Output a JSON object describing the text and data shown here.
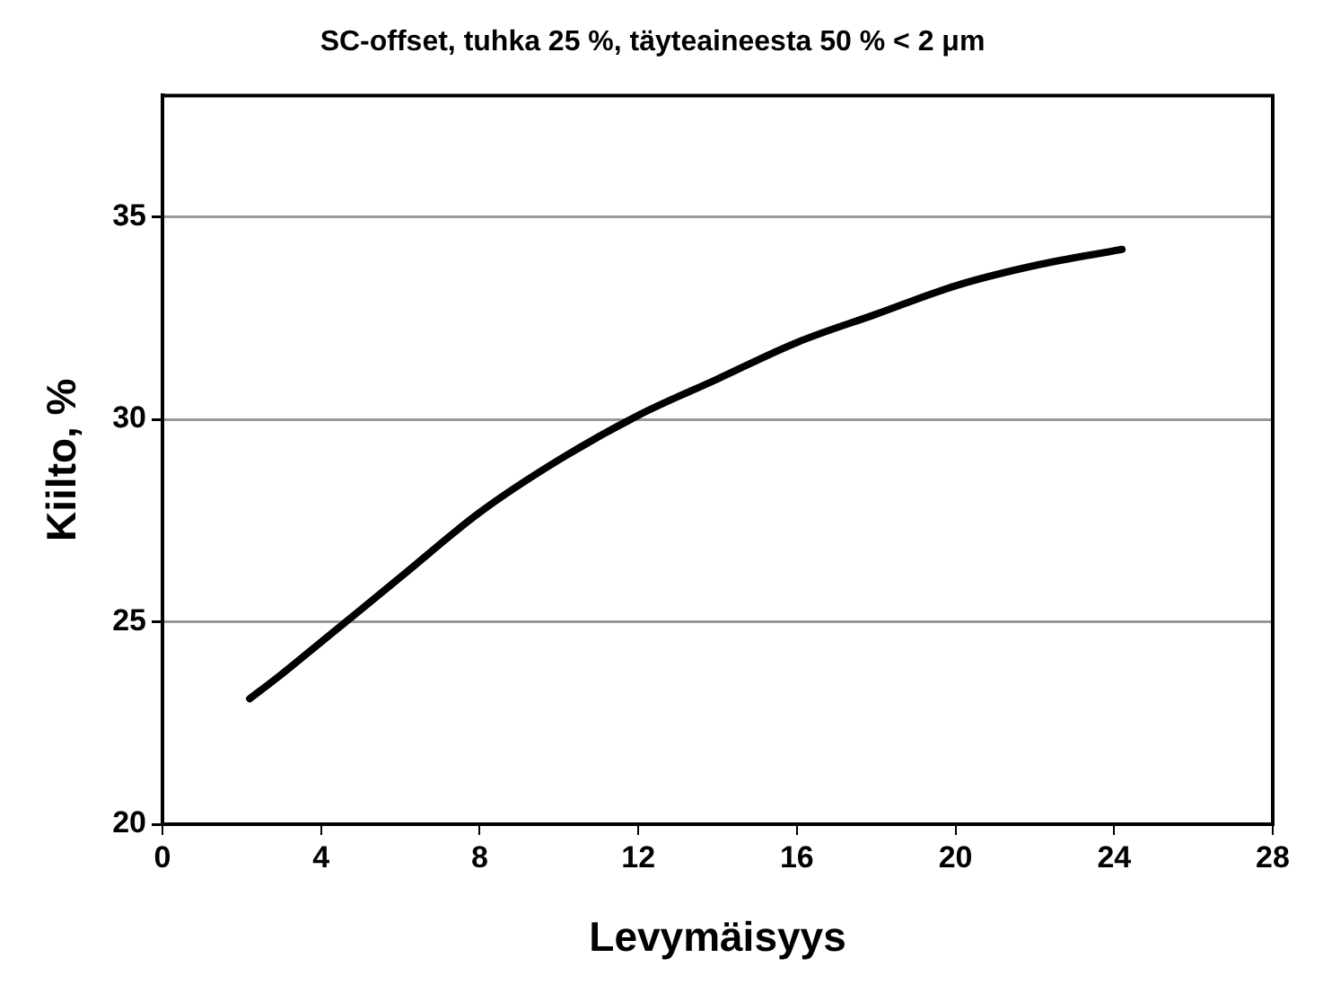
{
  "chart_data": {
    "type": "line",
    "title": "SC-offset, tuhka 25 %, täyteaineesta 50 % < 2 μm",
    "xlabel": "Levymäisyys",
    "ylabel": "Kiilto, %",
    "series": [
      {
        "color": "#000000",
        "x": [
          2.2,
          3,
          4,
          6,
          8,
          10,
          12,
          14,
          16,
          18,
          20,
          22,
          24.2
        ],
        "values": [
          23.1,
          23.7,
          24.5,
          26.1,
          27.7,
          29.0,
          30.1,
          31.0,
          31.9,
          32.6,
          33.3,
          33.8,
          34.2
        ]
      }
    ],
    "xlim": [
      0,
      28
    ],
    "xticks": [
      0,
      4,
      8,
      12,
      16,
      20,
      24,
      28
    ],
    "ylim": [
      20,
      38
    ],
    "yticks": [
      20,
      25,
      30,
      35
    ],
    "grid": "y",
    "legend": false,
    "marker": "none",
    "line_style": "solid"
  }
}
